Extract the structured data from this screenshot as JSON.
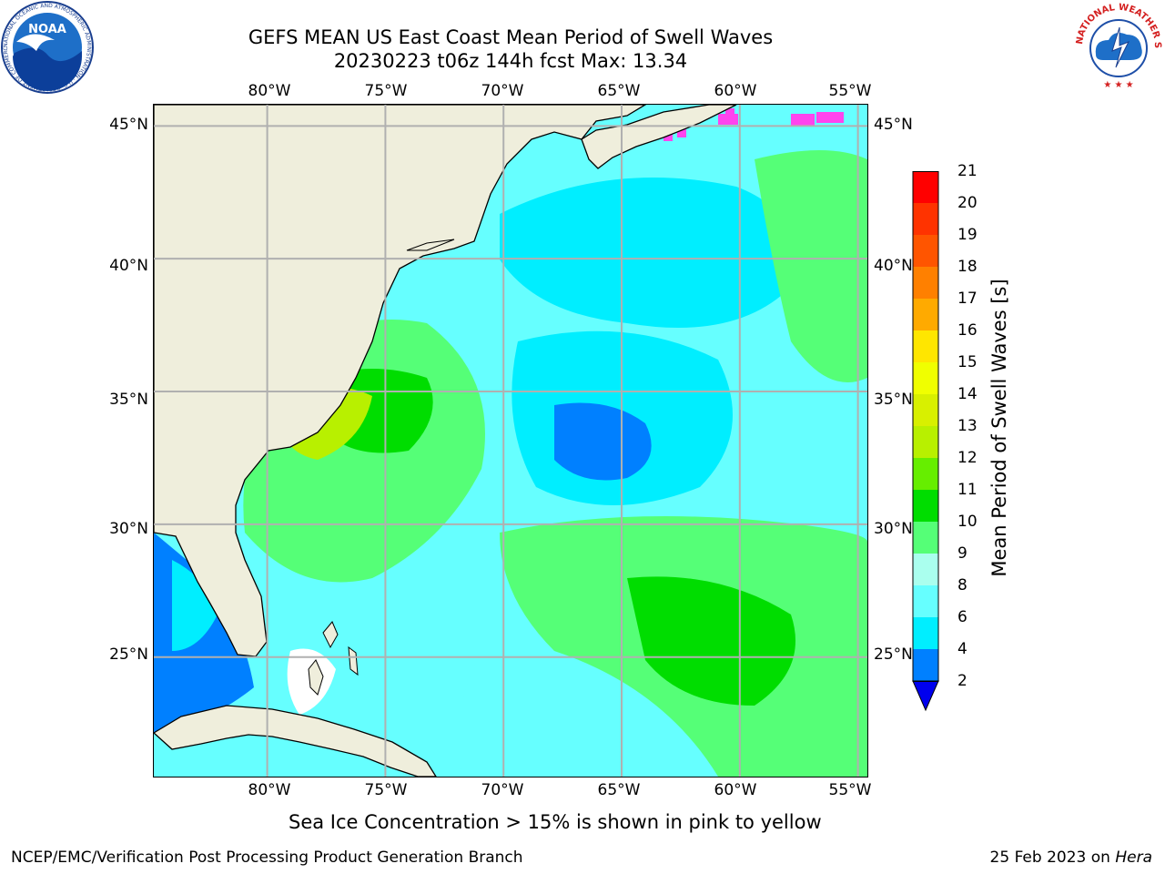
{
  "title": {
    "line1": "GEFS MEAN US East Coast Mean Period of Swell Waves",
    "line2": "20230223 t06z 144h fcst   Max: 13.34"
  },
  "map": {
    "lon_labels": [
      "80°W",
      "75°W",
      "70°W",
      "65°W",
      "60°W",
      "55°W"
    ],
    "lat_labels": [
      "45°N",
      "40°N",
      "35°N",
      "30°N",
      "25°N"
    ],
    "extent": {
      "lon_min": -84.8,
      "lon_max": -54.6,
      "lat_min": 20.5,
      "lat_max": 45.8
    },
    "colors": {
      "land": "#EFEEDC",
      "grid": "#B0B0B0",
      "coast": "#000000",
      "ice": "#FF44EE"
    }
  },
  "colorbar": {
    "title": "Mean Period of Swell Waves [s]",
    "ticks": [
      "21",
      "20",
      "19",
      "18",
      "17",
      "16",
      "15",
      "14",
      "13",
      "12",
      "11",
      "10",
      "9",
      "8",
      "6",
      "4",
      "2"
    ],
    "colors": [
      "#FF0000",
      "#FF3300",
      "#FF5500",
      "#FF8000",
      "#FFAA00",
      "#FFE600",
      "#F0FF00",
      "#D8F000",
      "#B8F000",
      "#66EE00",
      "#00DD00",
      "#55FF77",
      "#AAFFEE",
      "#66FFFF",
      "#00EEFF",
      "#0080FF",
      "#0000EE"
    ],
    "under_color": "#0000EE"
  },
  "caption": "Sea Ice Concentration > 15% is shown in pink to yellow",
  "footer": {
    "left": "NCEP/EMC/Verification Post Processing Product Generation Branch",
    "date": "25 Feb 2023 on ",
    "machine": "Hera"
  },
  "logos": {
    "noaa_text": "NOAA",
    "noaa_ring": "NATIONAL OCEANIC AND ATMOSPHERIC ADMINISTRATION · U.S. DEPARTMENT OF COMMERCE",
    "nws_ring": "NATIONAL WEATHER SERVICE"
  }
}
